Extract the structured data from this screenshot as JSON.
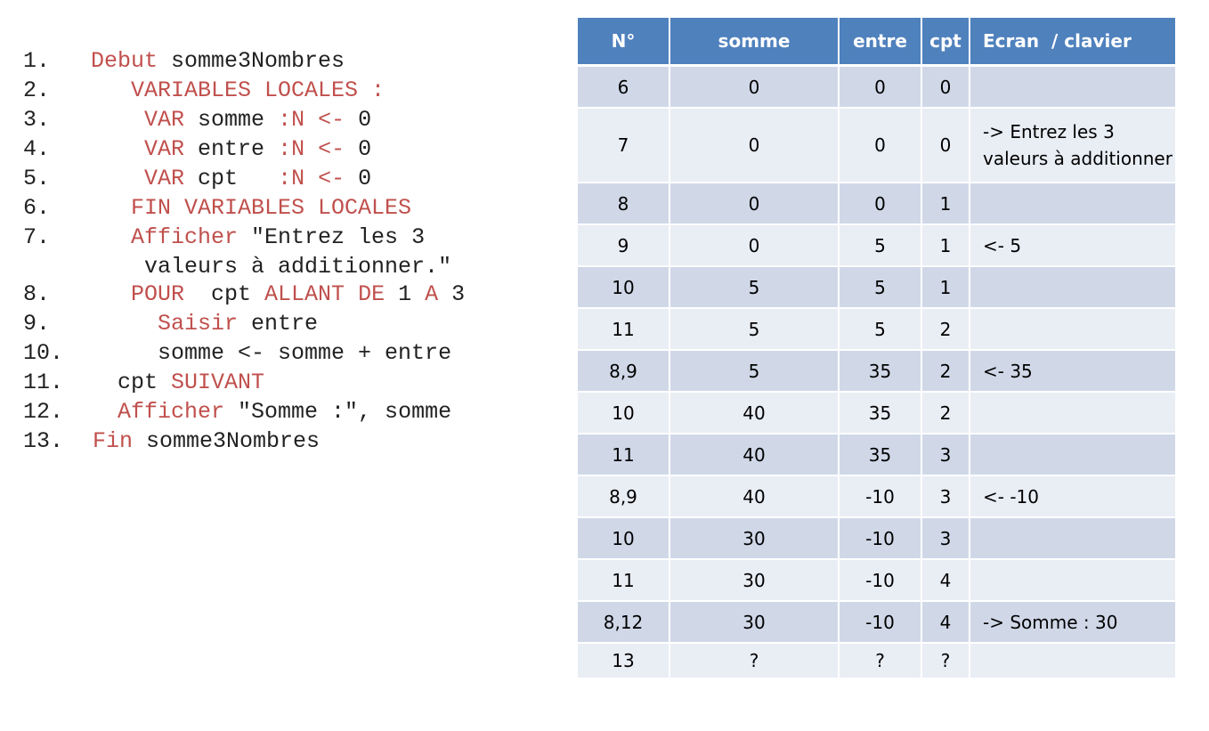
{
  "code_lines": [
    {
      "num": "1.",
      "parts": [
        {
          "t": "Debut",
          "k": true
        },
        {
          "t": " somme3Nombres",
          "k": false
        }
      ]
    },
    {
      "num": "2.",
      "parts": [
        {
          "t": "   VARIABLES LOCALES :",
          "k": true
        }
      ]
    },
    {
      "num": "3.",
      "parts": [
        {
          "t": "    VAR",
          "k": true
        },
        {
          "t": " somme ",
          "k": false
        },
        {
          "t": ":N <-",
          "k": true
        },
        {
          "t": " 0",
          "k": false
        }
      ]
    },
    {
      "num": "4.",
      "parts": [
        {
          "t": "    VAR",
          "k": true
        },
        {
          "t": " entre ",
          "k": false
        },
        {
          "t": ":N <-",
          "k": true
        },
        {
          "t": " 0",
          "k": false
        }
      ]
    },
    {
      "num": "5.",
      "parts": [
        {
          "t": "    VAR",
          "k": true
        },
        {
          "t": " cpt   ",
          "k": false
        },
        {
          "t": ":N <-",
          "k": true
        },
        {
          "t": " 0",
          "k": false
        }
      ]
    },
    {
      "num": "6.",
      "parts": [
        {
          "t": "   FIN VARIABLES LOCALES",
          "k": true
        }
      ]
    },
    {
      "num": "7.",
      "tall": true,
      "parts": [
        {
          "t": "   Afficher",
          "k": true
        },
        {
          "t": " \"Entrez les 3\n    valeurs à additionner.\"",
          "k": false
        }
      ]
    },
    {
      "num": "8.",
      "parts": [
        {
          "t": "   POUR",
          "k": true
        },
        {
          "t": "  cpt ",
          "k": false
        },
        {
          "t": "ALLANT DE",
          "k": true
        },
        {
          "t": " 1 ",
          "k": false
        },
        {
          "t": "A",
          "k": true
        },
        {
          "t": " 3",
          "k": false
        }
      ]
    },
    {
      "num": "9.",
      "parts": [
        {
          "t": "     Saisir",
          "k": true
        },
        {
          "t": " entre",
          "k": false
        }
      ]
    },
    {
      "num": "10.",
      "parts": [
        {
          "t": "     somme <- somme + entre",
          "k": false
        }
      ]
    },
    {
      "num": "11.",
      "parts": [
        {
          "t": "  cpt ",
          "k": false
        },
        {
          "t": "SUIVANT",
          "k": true
        }
      ]
    },
    {
      "num": "12.",
      "parts": [
        {
          "t": "  Afficher",
          "k": true
        },
        {
          "t": " \"Somme :\", somme",
          "k": false
        }
      ]
    },
    {
      "num": "13.",
      "body_offset": 78,
      "parts": [
        {
          "t": "Fin",
          "k": true
        },
        {
          "t": " somme3Nombres",
          "k": false
        }
      ]
    }
  ],
  "trace_table": {
    "headers": [
      "N°",
      "somme",
      "entre",
      "cpt",
      "Ecran  / clavier"
    ],
    "rows": [
      [
        "6",
        "0",
        "0",
        "0",
        ""
      ],
      [
        "7",
        "0",
        "0",
        "0",
        "-> Entrez les 3\nvaleurs à additionner"
      ],
      [
        "8",
        "0",
        "0",
        "1",
        ""
      ],
      [
        "9",
        "0",
        "5",
        "1",
        "<-  5"
      ],
      [
        "10",
        "5",
        "5",
        "1",
        ""
      ],
      [
        "11",
        "5",
        "5",
        "2",
        ""
      ],
      [
        "8,9",
        "5",
        "35",
        "2",
        "<-  35"
      ],
      [
        "10",
        "40",
        "35",
        "2",
        ""
      ],
      [
        "11",
        "40",
        "35",
        "3",
        ""
      ],
      [
        "8,9",
        "40",
        "-10",
        "3",
        "<-  -10"
      ],
      [
        "10",
        "30",
        "-10",
        "3",
        ""
      ],
      [
        "11",
        "30",
        "-10",
        "4",
        ""
      ],
      [
        "8,12",
        "30",
        "-10",
        "4",
        "-> Somme : 30"
      ],
      [
        "13",
        "?",
        "?",
        "?",
        ""
      ]
    ]
  },
  "colors": {
    "keyword": "#c0504d",
    "header_bg": "#4f81bd",
    "row_dark": "#d0d8e8",
    "row_light": "#e9edf4"
  }
}
